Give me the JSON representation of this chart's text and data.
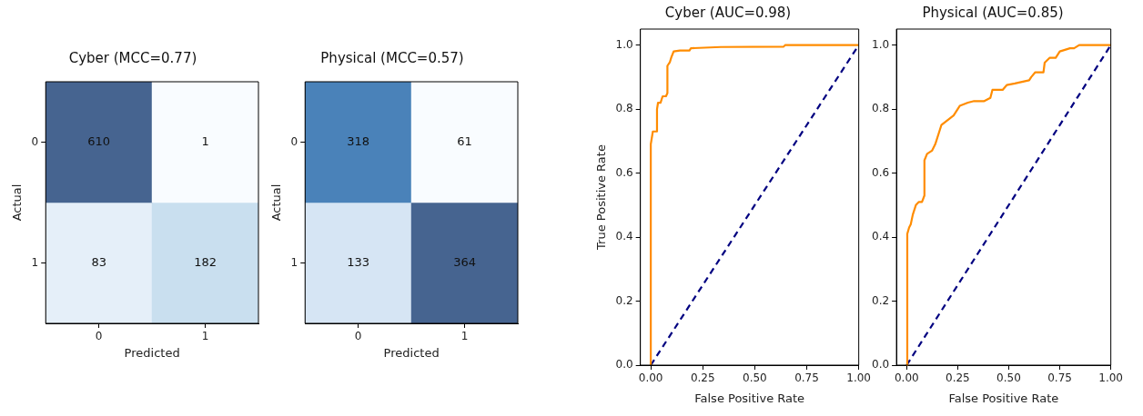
{
  "chart_data": [
    {
      "type": "heatmap",
      "title": "Cyber (MCC=0.77)",
      "xlabel": "Predicted",
      "ylabel": "Actual",
      "categories": [
        "0",
        "1"
      ],
      "y_categories": [
        "0",
        "1"
      ],
      "cells": [
        [
          610,
          1
        ],
        [
          83,
          182
        ]
      ],
      "data_labels": true
    },
    {
      "type": "heatmap",
      "title": "Physical (MCC=0.57)",
      "xlabel": "Predicted",
      "ylabel": "Actual",
      "categories": [
        "0",
        "1"
      ],
      "y_categories": [
        "0",
        "1"
      ],
      "cells": [
        [
          318,
          61
        ],
        [
          133,
          364
        ]
      ],
      "data_labels": true
    },
    {
      "type": "line",
      "title": "Cyber (AUC=0.98)",
      "xlabel": "False Positive Rate",
      "ylabel": "True Positive Rate",
      "xlim": [
        -0.05,
        1.0
      ],
      "ylim": [
        0.0,
        1.05
      ],
      "xticks": [
        {
          "value": 0,
          "label": "0.00"
        },
        {
          "value": 0.25,
          "label": "0.25"
        },
        {
          "value": 0.5,
          "label": "0.50"
        },
        {
          "value": 0.75,
          "label": "0.75"
        },
        {
          "value": 1,
          "label": "1.00"
        }
      ],
      "yticks": [
        {
          "value": 0,
          "label": "0.0"
        },
        {
          "value": 0.2,
          "label": "0.2"
        },
        {
          "value": 0.4,
          "label": "0.4"
        },
        {
          "value": 0.6,
          "label": "0.6"
        },
        {
          "value": 0.8,
          "label": "0.8"
        },
        {
          "value": 1,
          "label": "1.0"
        }
      ],
      "grid": false,
      "legend": false,
      "marker": "none",
      "series": [
        {
          "color": "#ff8c00",
          "line_style": "solid",
          "x": [
            0,
            0,
            0.01,
            0.03,
            0.03,
            0.035,
            0.047,
            0.057,
            0.073,
            0.08,
            0.08,
            0.092,
            0.098,
            0.11,
            0.14,
            0.186,
            0.193,
            0.337,
            0.639,
            0.646,
            1
          ],
          "values": [
            0,
            0.69,
            0.73,
            0.73,
            0.8,
            0.82,
            0.82,
            0.84,
            0.84,
            0.85,
            0.935,
            0.947,
            0.96,
            0.98,
            0.983,
            0.983,
            0.99,
            0.994,
            0.995,
            1,
            1
          ]
        },
        {
          "color": "#000080",
          "line_style": "dashed",
          "x": [
            0,
            1
          ],
          "values": [
            0,
            1
          ]
        }
      ]
    },
    {
      "type": "line",
      "title": "Physical (AUC=0.85)",
      "xlabel": "False Positive Rate",
      "xlim": [
        -0.05,
        1.0
      ],
      "ylim": [
        0.0,
        1.05
      ],
      "xticks": [
        {
          "value": 0,
          "label": "0.00"
        },
        {
          "value": 0.25,
          "label": "0.25"
        },
        {
          "value": 0.5,
          "label": "0.50"
        },
        {
          "value": 0.75,
          "label": "0.75"
        },
        {
          "value": 1,
          "label": "1.00"
        }
      ],
      "yticks": [
        {
          "value": 0,
          "label": "0.0"
        },
        {
          "value": 0.2,
          "label": "0.2"
        },
        {
          "value": 0.4,
          "label": "0.4"
        },
        {
          "value": 0.6,
          "label": "0.6"
        },
        {
          "value": 0.8,
          "label": "0.8"
        },
        {
          "value": 1,
          "label": "1.0"
        }
      ],
      "grid": false,
      "legend": false,
      "marker": "none",
      "series": [
        {
          "color": "#ff8c00",
          "line_style": "solid",
          "x": [
            0,
            0.003,
            0.012,
            0.02,
            0.03,
            0.045,
            0.06,
            0.075,
            0.087,
            0.087,
            0.1,
            0.124,
            0.14,
            0.17,
            0.19,
            0.21,
            0.23,
            0.24,
            0.26,
            0.3,
            0.33,
            0.38,
            0.41,
            0.42,
            0.47,
            0.49,
            0.53,
            0.6,
            0.61,
            0.63,
            0.67,
            0.676,
            0.7,
            0.73,
            0.75,
            0.8,
            0.82,
            0.845,
            1
          ],
          "values": [
            0,
            0.41,
            0.43,
            0.44,
            0.47,
            0.5,
            0.51,
            0.51,
            0.53,
            0.64,
            0.66,
            0.67,
            0.69,
            0.75,
            0.76,
            0.77,
            0.78,
            0.79,
            0.81,
            0.82,
            0.825,
            0.825,
            0.835,
            0.86,
            0.86,
            0.875,
            0.88,
            0.89,
            0.9,
            0.915,
            0.915,
            0.945,
            0.96,
            0.96,
            0.98,
            0.99,
            0.99,
            1,
            1
          ]
        },
        {
          "color": "#000080",
          "line_style": "dashed",
          "x": [
            0,
            1
          ],
          "values": [
            0,
            1
          ]
        }
      ]
    }
  ]
}
